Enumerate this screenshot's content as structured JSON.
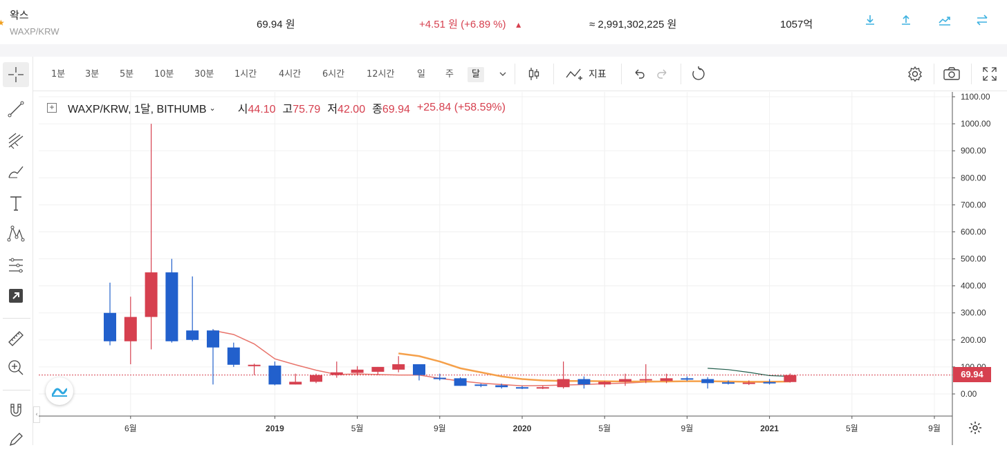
{
  "ticker": {
    "name": "왁스",
    "symbol": "WAXP/KRW",
    "price": "69.94 원",
    "change": "+4.51 원 (+6.89 %)",
    "volume_krw": "≈ 2,991,302,225 원",
    "market_cap": "1057억"
  },
  "toolbar": {
    "intervals": [
      "1분",
      "3분",
      "5분",
      "10분",
      "30분",
      "1시간",
      "4시간",
      "6시간",
      "12시간",
      "일",
      "주",
      "달"
    ],
    "active_interval": "달",
    "indicators_label": "지표"
  },
  "legend": {
    "title": "WAXP/KRW, 1달, BITHUMB",
    "open_label": "시",
    "open": "44.10",
    "high_label": "고",
    "high": "75.79",
    "low_label": "저",
    "low": "42.00",
    "close_label": "종",
    "close": "69.94",
    "change": "+25.84 (+58.59%)"
  },
  "colors": {
    "up": "#d6404f",
    "down": "#2260cc",
    "accent": "#3db1e0",
    "ma_short": "#e8736a",
    "ma_mid": "#f5a04a",
    "ma_long": "#1f5c4a"
  },
  "chart_data": {
    "type": "candlestick",
    "x": [
      "2018-05",
      "2018-06",
      "2018-07",
      "2018-08",
      "2018-09",
      "2018-10",
      "2018-11",
      "2018-12",
      "2019-01",
      "2019-02",
      "2019-03",
      "2019-04",
      "2019-05",
      "2019-06",
      "2019-07",
      "2019-08",
      "2019-09",
      "2019-10",
      "2019-11",
      "2019-12",
      "2020-01",
      "2020-02",
      "2020-03",
      "2020-04",
      "2020-05",
      "2020-06",
      "2020-07",
      "2020-08",
      "2020-09",
      "2020-10",
      "2020-11",
      "2020-12",
      "2021-01",
      "2021-02"
    ],
    "open": [
      300,
      195,
      285,
      450,
      235,
      235,
      172,
      108,
      105,
      35,
      45,
      70,
      78,
      82,
      90,
      110,
      60,
      58,
      35,
      32,
      25,
      22,
      25,
      55,
      35,
      45,
      50,
      48,
      58,
      55,
      43,
      42,
      44,
      44.1
    ],
    "high": [
      412,
      360,
      1000,
      500,
      435,
      240,
      190,
      112,
      120,
      75,
      75,
      120,
      103,
      100,
      140,
      110,
      75,
      62,
      38,
      38,
      30,
      30,
      120,
      65,
      48,
      75,
      110,
      75,
      65,
      62,
      50,
      50,
      55,
      75.79
    ],
    "low": [
      180,
      110,
      165,
      190,
      195,
      35,
      100,
      70,
      32,
      35,
      40,
      60,
      68,
      70,
      80,
      50,
      50,
      30,
      25,
      20,
      18,
      18,
      20,
      20,
      25,
      30,
      40,
      40,
      48,
      20,
      35,
      33,
      35,
      42.0
    ],
    "close": [
      195,
      285,
      450,
      195,
      200,
      172,
      108,
      108,
      35,
      45,
      70,
      80,
      90,
      100,
      110,
      70,
      55,
      30,
      32,
      25,
      22,
      25,
      55,
      35,
      45,
      55,
      55,
      58,
      55,
      40,
      42,
      42,
      42,
      69.94
    ],
    "ma_short": [
      null,
      null,
      null,
      null,
      null,
      235,
      220,
      185,
      130,
      108,
      88,
      72,
      74,
      72,
      70,
      70,
      58,
      48,
      40,
      35,
      30,
      31,
      33,
      35,
      38,
      40,
      44,
      46,
      48,
      48,
      46,
      44,
      43,
      48
    ],
    "ma_mid": [
      null,
      null,
      null,
      null,
      null,
      null,
      null,
      null,
      null,
      null,
      null,
      null,
      null,
      null,
      150,
      140,
      120,
      95,
      80,
      65,
      55,
      50,
      48,
      48,
      47,
      46,
      46,
      46,
      47,
      47,
      46,
      45,
      45,
      46
    ],
    "ma_long": [
      null,
      null,
      null,
      null,
      null,
      null,
      null,
      null,
      null,
      null,
      null,
      null,
      null,
      null,
      null,
      null,
      null,
      null,
      null,
      null,
      null,
      null,
      null,
      null,
      null,
      null,
      null,
      null,
      null,
      95,
      90,
      80,
      68,
      65
    ],
    "yticks": [
      "1100.00",
      "1000.00",
      "900.00",
      "800.00",
      "700.00",
      "600.00",
      "500.00",
      "400.00",
      "300.00",
      "200.00",
      "100.00",
      "0.00"
    ],
    "ylim": [
      -25,
      1130
    ],
    "xticks": [
      {
        "label": "6월",
        "at": "2018-06",
        "bold": false
      },
      {
        "label": "2019",
        "at": "2019-01",
        "bold": true
      },
      {
        "label": "5월",
        "at": "2019-05",
        "bold": false
      },
      {
        "label": "9월",
        "at": "2019-09",
        "bold": false
      },
      {
        "label": "2020",
        "at": "2020-01",
        "bold": true
      },
      {
        "label": "5월",
        "at": "2020-05",
        "bold": false
      },
      {
        "label": "9월",
        "at": "2020-09",
        "bold": false
      },
      {
        "label": "2021",
        "at": "2021-01",
        "bold": true
      },
      {
        "label": "5월",
        "at": "2021-05",
        "bold": false
      },
      {
        "label": "9월",
        "at": "2021-09",
        "bold": false
      }
    ],
    "last_price": "69.94",
    "grid": true
  }
}
